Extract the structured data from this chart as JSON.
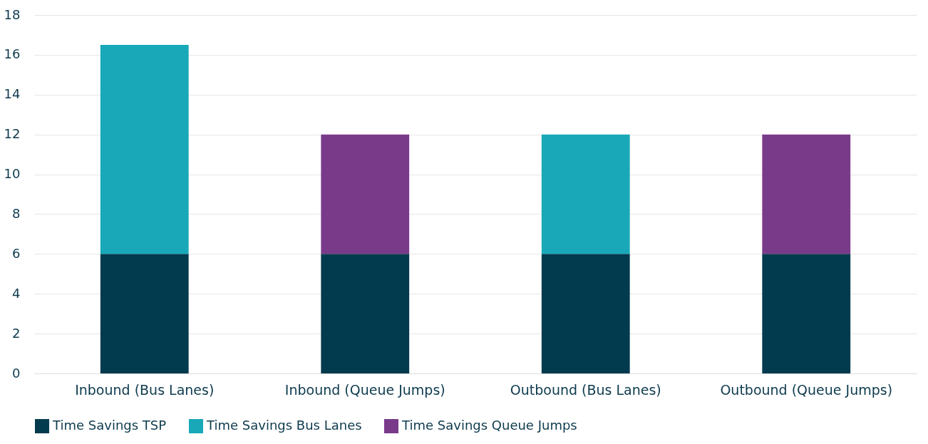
{
  "chart_data": {
    "type": "bar",
    "stacked": true,
    "categories": [
      "Inbound (Bus Lanes)",
      "Inbound  (Queue Jumps)",
      "Outbound (Bus Lanes)",
      "Outbound (Queue Jumps)"
    ],
    "series": [
      {
        "name": "Time Savings TSP",
        "color": "#023a4e",
        "values": [
          6,
          6,
          6,
          6
        ]
      },
      {
        "name": "Time Savings Bus Lanes",
        "color": "#18a8b8",
        "values": [
          10.5,
          null,
          6,
          null
        ]
      },
      {
        "name": "Time Savings Queue Jumps",
        "color": "#7a3a8a",
        "values": [
          null,
          6,
          null,
          6
        ]
      }
    ],
    "ylim": [
      0,
      18
    ],
    "yticks": [
      0,
      2,
      4,
      6,
      8,
      10,
      12,
      14,
      16,
      18
    ],
    "grid": "y",
    "legend": "bottom"
  }
}
